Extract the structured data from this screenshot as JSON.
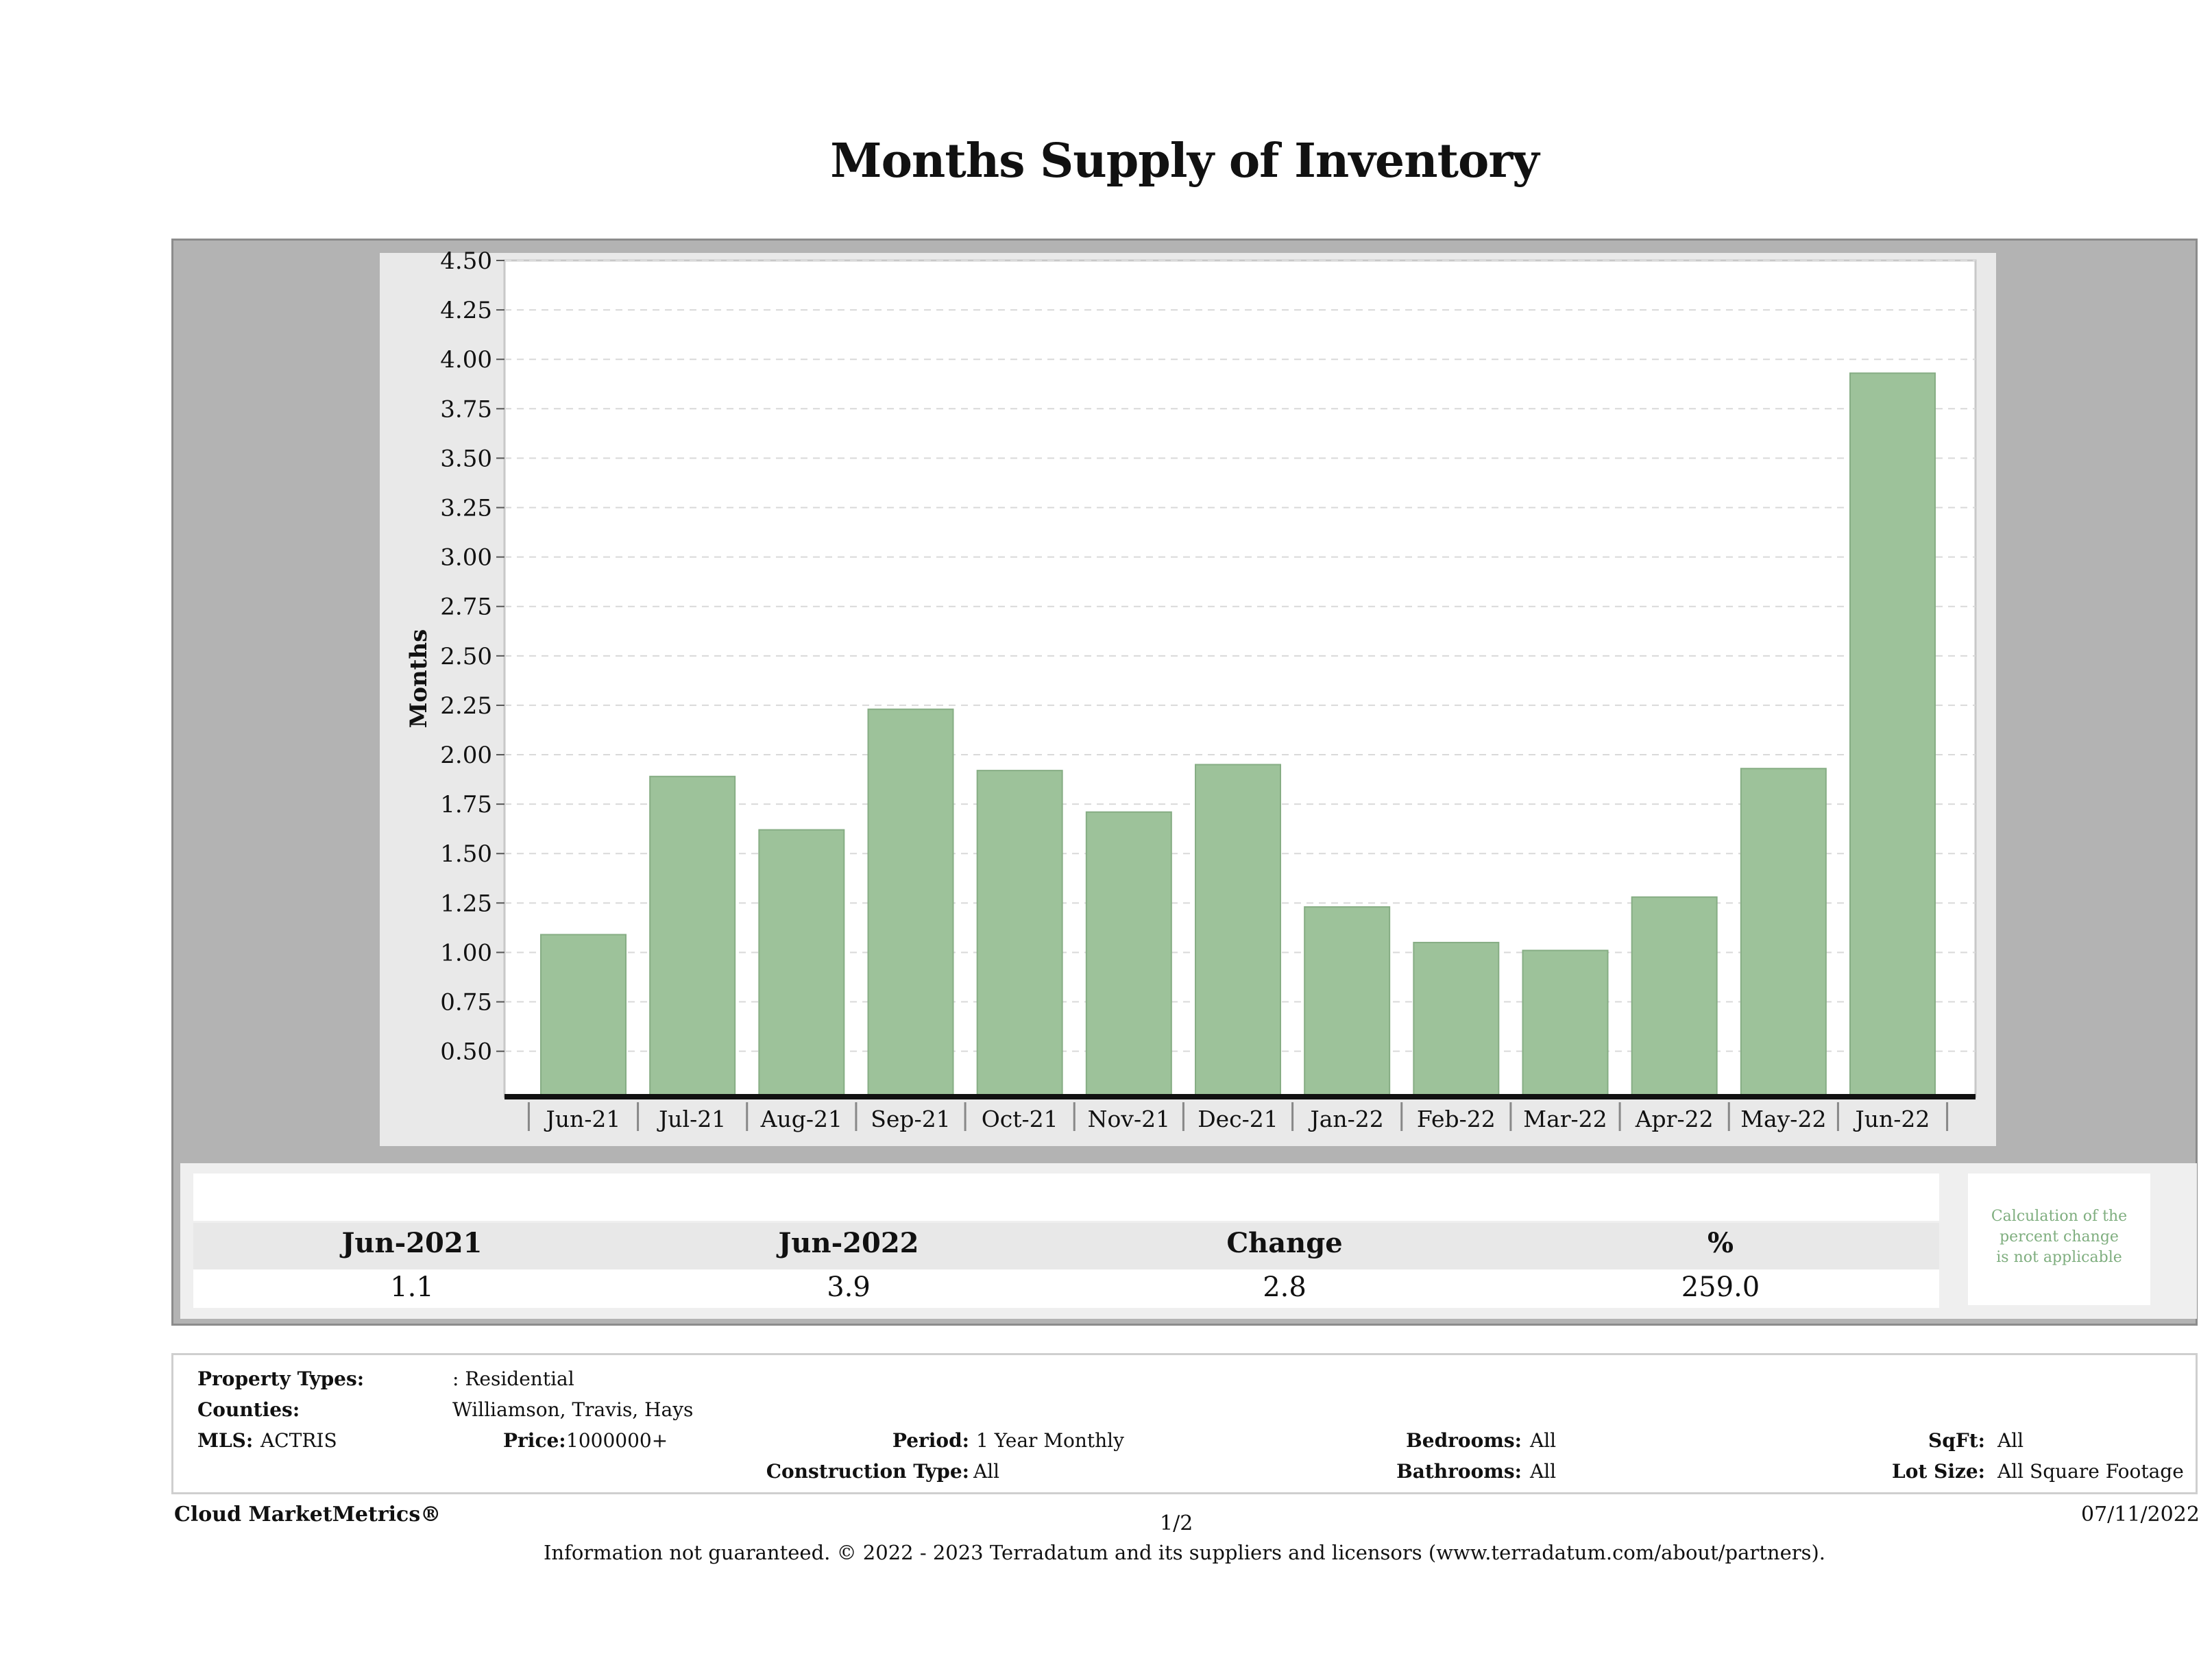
{
  "title": "Months Supply of Inventory",
  "chart_data": {
    "type": "bar",
    "ylabel": "Months",
    "categories": [
      "Jun-21",
      "Jul-21",
      "Aug-21",
      "Sep-21",
      "Oct-21",
      "Nov-21",
      "Dec-21",
      "Jan-22",
      "Feb-22",
      "Mar-22",
      "Apr-22",
      "May-22",
      "Jun-22"
    ],
    "values": [
      1.09,
      1.89,
      1.62,
      2.23,
      1.92,
      1.71,
      1.95,
      1.23,
      1.05,
      1.01,
      1.28,
      1.93,
      3.93
    ],
    "y_ticks": [
      "0.50",
      "0.75",
      "1.00",
      "1.25",
      "1.50",
      "1.75",
      "2.00",
      "2.25",
      "2.50",
      "2.75",
      "3.00",
      "3.25",
      "3.50",
      "3.75",
      "4.00",
      "4.25",
      "4.50"
    ],
    "ylim": [
      0.27,
      4.5
    ],
    "grid": true,
    "bar_color": "#9dc29a"
  },
  "stats": {
    "labels": [
      "Jun-2021",
      "Jun-2022",
      "Change",
      "%"
    ],
    "values": [
      "1.1",
      "3.9",
      "2.8",
      "259.0"
    ],
    "note": [
      "Calculation of the",
      "percent change",
      "is not applicable"
    ]
  },
  "info": {
    "property_types_label": "Property Types:",
    "property_types_value": ": Residential",
    "counties_label": "Counties:",
    "counties_value": "Williamson, Travis, Hays",
    "mls_label": "MLS:",
    "mls_value": "ACTRIS",
    "price_label": "Price:",
    "price_value": "1000000+",
    "period_label": "Period:",
    "period_value": "1 Year Monthly",
    "construction_label": "Construction Type:",
    "construction_value": "All",
    "bedrooms_label": "Bedrooms:",
    "bedrooms_value": "All",
    "bathrooms_label": "Bathrooms:",
    "bathrooms_value": "All",
    "sqft_label": "SqFt:",
    "sqft_value": "All",
    "lotsize_label": "Lot Size:",
    "lotsize_value": "All Square Footage"
  },
  "footer": {
    "brand": "Cloud MarketMetrics®",
    "page": "1/2",
    "date": "07/11/2022",
    "disclaimer": "Information not guaranteed. © 2022 - 2023 Terradatum and its suppliers and licensors (www.terradatum.com/about/partners)."
  }
}
